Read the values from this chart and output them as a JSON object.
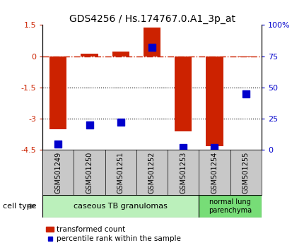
{
  "title": "GDS4256 / Hs.174767.0.A1_3p_at",
  "samples": [
    "GSM501249",
    "GSM501250",
    "GSM501251",
    "GSM501252",
    "GSM501253",
    "GSM501254",
    "GSM501255"
  ],
  "transformed_count": [
    -3.5,
    0.12,
    0.22,
    1.38,
    -3.62,
    -4.3,
    -0.05
  ],
  "percentile_rank": [
    5,
    20,
    22,
    82,
    2,
    2,
    45
  ],
  "ylim_left": [
    -4.5,
    1.5
  ],
  "ylim_right": [
    0,
    100
  ],
  "yticks_left": [
    1.5,
    0,
    -1.5,
    -3,
    -4.5
  ],
  "yticks_right": [
    0,
    25,
    50,
    75,
    100
  ],
  "ytick_labels_left": [
    "1.5",
    "0",
    "-1.5",
    "-3",
    "-4.5"
  ],
  "ytick_labels_right": [
    "0",
    "25",
    "50",
    "75",
    "100%"
  ],
  "dotted_lines": [
    -1.5,
    -3
  ],
  "bar_color": "#cc2200",
  "dot_color": "#0000cc",
  "bar_width": 0.55,
  "dot_size": 55,
  "cell_types": [
    {
      "label": "caseous TB granulomas",
      "samples_range": [
        0,
        4
      ],
      "color": "#bbf0bb"
    },
    {
      "label": "normal lung\nparenchyma",
      "samples_range": [
        5,
        6
      ],
      "color": "#77dd77"
    }
  ],
  "legend_bar_label": "transformed count",
  "legend_dot_label": "percentile rank within the sample",
  "cell_type_label": "cell type",
  "xlabel_bg": "#c8c8c8",
  "plot_bg": "#ffffff",
  "tick_label_fontsize": 8,
  "title_fontsize": 10,
  "xlabel_fontsize": 7
}
